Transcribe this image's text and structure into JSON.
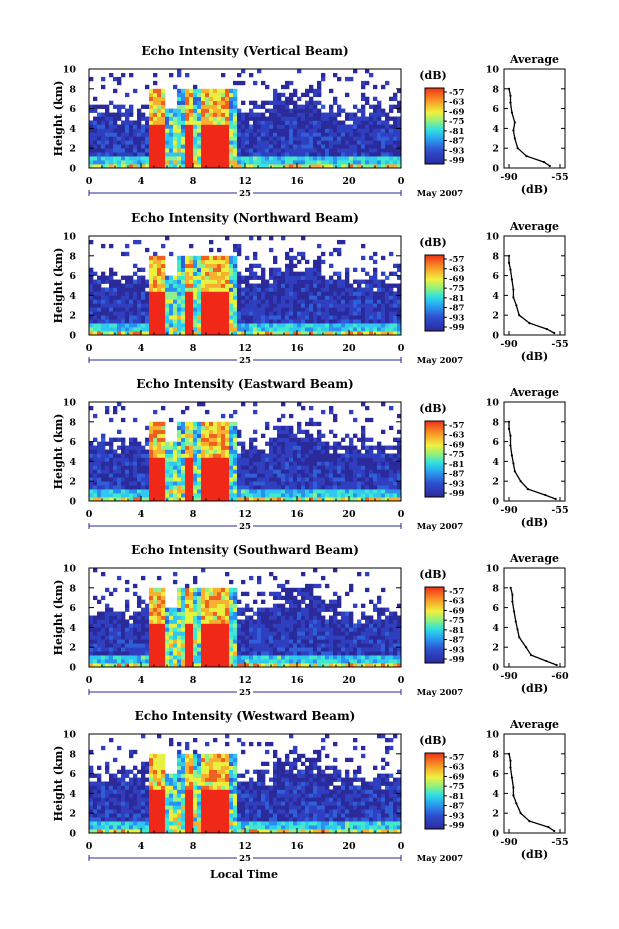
{
  "figure": {
    "x_axis_label": "Local Time",
    "date_label": "May 2007",
    "day_label": "25"
  },
  "chart_data": [
    {
      "type": "heatmap",
      "title": "Echo Intensity (Vertical Beam)",
      "ylabel": "Height (km)",
      "xlim": [
        0,
        24
      ],
      "ylim": [
        0,
        10
      ],
      "x_ticks": [
        "0",
        "4",
        "8",
        "12",
        "16",
        "20",
        "0"
      ],
      "y_ticks": [
        "0",
        "2",
        "4",
        "6",
        "8",
        "10"
      ],
      "colorbar": {
        "label": "(dB)",
        "ticks": [
          "-57",
          "-63",
          "-69",
          "-75",
          "-81",
          "-87",
          "-93",
          "-99"
        ]
      },
      "profile": {
        "title": "Average",
        "xlabel": "(dB)",
        "xlim": [
          -90,
          -55
        ],
        "x_ticks": [
          "-90",
          "-55"
        ],
        "x": [
          -62,
          -66,
          -78,
          -84,
          -86,
          -87,
          -86,
          -88,
          -89,
          -89,
          -90
        ],
        "y": [
          0.2,
          0.6,
          1.2,
          2.0,
          3.0,
          3.8,
          4.6,
          5.6,
          6.6,
          7.3,
          8.0
        ]
      }
    },
    {
      "type": "heatmap",
      "title": "Echo Intensity (Northward Beam)",
      "ylabel": "Height (km)",
      "xlim": [
        0,
        24
      ],
      "ylim": [
        0,
        10
      ],
      "x_ticks": [
        "0",
        "4",
        "8",
        "12",
        "16",
        "20",
        "0"
      ],
      "y_ticks": [
        "0",
        "2",
        "4",
        "6",
        "8",
        "10"
      ],
      "colorbar": {
        "label": "(dB)",
        "ticks": [
          "-57",
          "-63",
          "-69",
          "-75",
          "-81",
          "-87",
          "-93",
          "-99"
        ]
      },
      "profile": {
        "title": "Average",
        "xlabel": "(dB)",
        "xlim": [
          -90,
          -55
        ],
        "x_ticks": [
          "-90",
          "-55"
        ],
        "x": [
          -59,
          -64,
          -76,
          -83,
          -85,
          -87,
          -87,
          -88,
          -89,
          -90,
          -90
        ],
        "y": [
          0.2,
          0.6,
          1.2,
          2.0,
          3.0,
          3.8,
          4.6,
          5.6,
          6.6,
          7.3,
          8.0
        ]
      }
    },
    {
      "type": "heatmap",
      "title": "Echo Intensity (Eastward Beam)",
      "ylabel": "Height (km)",
      "xlim": [
        0,
        24
      ],
      "ylim": [
        0,
        10
      ],
      "x_ticks": [
        "0",
        "4",
        "8",
        "12",
        "16",
        "20",
        "0"
      ],
      "y_ticks": [
        "0",
        "2",
        "4",
        "6",
        "8",
        "10"
      ],
      "colorbar": {
        "label": "(dB)",
        "ticks": [
          "-57",
          "-63",
          "-69",
          "-75",
          "-81",
          "-87",
          "-93",
          "-99"
        ]
      },
      "profile": {
        "title": "Average",
        "xlabel": "(dB)",
        "xlim": [
          -90,
          -55
        ],
        "x_ticks": [
          "-90",
          "-55"
        ],
        "x": [
          -58,
          -65,
          -77,
          -82,
          -86,
          -87,
          -88,
          -89,
          -89,
          -90,
          -90
        ],
        "y": [
          0.2,
          0.6,
          1.2,
          2.0,
          3.0,
          3.8,
          4.6,
          5.6,
          6.6,
          7.3,
          8.0
        ]
      }
    },
    {
      "type": "heatmap",
      "title": "Echo Intensity (Southward Beam)",
      "ylabel": "Height (km)",
      "xlim": [
        0,
        24
      ],
      "ylim": [
        0,
        10
      ],
      "x_ticks": [
        "0",
        "4",
        "8",
        "12",
        "16",
        "20",
        "0"
      ],
      "y_ticks": [
        "0",
        "2",
        "4",
        "6",
        "8",
        "10"
      ],
      "colorbar": {
        "label": "(dB)",
        "ticks": [
          "-57",
          "-63",
          "-69",
          "-75",
          "-81",
          "-87",
          "-93",
          "-99"
        ]
      },
      "profile": {
        "title": "Average",
        "xlabel": "(dB)",
        "xlim": [
          -90,
          -60
        ],
        "x_ticks": [
          "-90",
          "-60"
        ],
        "x": [
          -62,
          -68,
          -77,
          -80,
          -84,
          -85,
          -86,
          -87,
          -88,
          -88,
          -89
        ],
        "y": [
          0.2,
          0.6,
          1.2,
          2.0,
          3.0,
          3.8,
          4.6,
          5.6,
          6.6,
          7.3,
          8.0
        ]
      }
    },
    {
      "type": "heatmap",
      "title": "Echo Intensity (Westward Beam)",
      "ylabel": "Height (km)",
      "xlim": [
        0,
        24
      ],
      "ylim": [
        0,
        10
      ],
      "x_ticks": [
        "0",
        "4",
        "8",
        "12",
        "16",
        "20",
        "0"
      ],
      "y_ticks": [
        "0",
        "2",
        "4",
        "6",
        "8",
        "10"
      ],
      "colorbar": {
        "label": "(dB)",
        "ticks": [
          "-57",
          "-63",
          "-69",
          "-75",
          "-81",
          "-87",
          "-93",
          "-99"
        ]
      },
      "profile": {
        "title": "Average",
        "xlabel": "(dB)",
        "xlim": [
          -90,
          -55
        ],
        "x_ticks": [
          "-90",
          "-55"
        ],
        "x": [
          -59,
          -63,
          -76,
          -82,
          -85,
          -87,
          -87,
          -88,
          -89,
          -89,
          -90
        ],
        "y": [
          0.2,
          0.6,
          1.2,
          2.0,
          3.0,
          3.8,
          4.6,
          5.6,
          6.6,
          7.3,
          8.0
        ]
      }
    }
  ]
}
